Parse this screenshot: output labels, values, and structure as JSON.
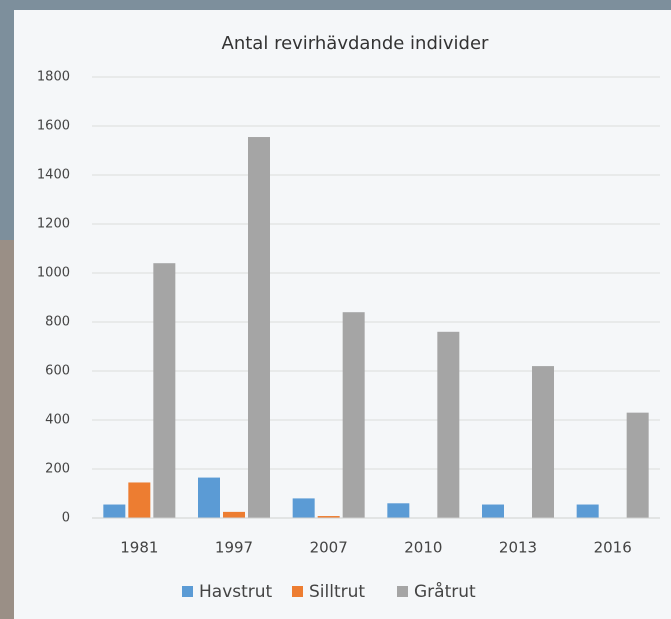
{
  "chart_data": {
    "type": "bar",
    "title": "Antal revirhävdande individer",
    "categories": [
      "1981",
      "1997",
      "2007",
      "2010",
      "2013",
      "2016"
    ],
    "series": [
      {
        "name": "Havstrut",
        "color": "#5b9bd5",
        "values": [
          55,
          165,
          80,
          60,
          55,
          55
        ]
      },
      {
        "name": "Silltrut",
        "color": "#ed7d31",
        "values": [
          145,
          25,
          8,
          0,
          0,
          0
        ]
      },
      {
        "name": "Gråtrut",
        "color": "#a5a5a5",
        "values": [
          1040,
          1555,
          840,
          760,
          620,
          430
        ]
      }
    ],
    "ylim": [
      0,
      1800
    ],
    "yticks": [
      0,
      200,
      400,
      600,
      800,
      1000,
      1200,
      1400,
      1600,
      1800
    ],
    "grid": true
  }
}
